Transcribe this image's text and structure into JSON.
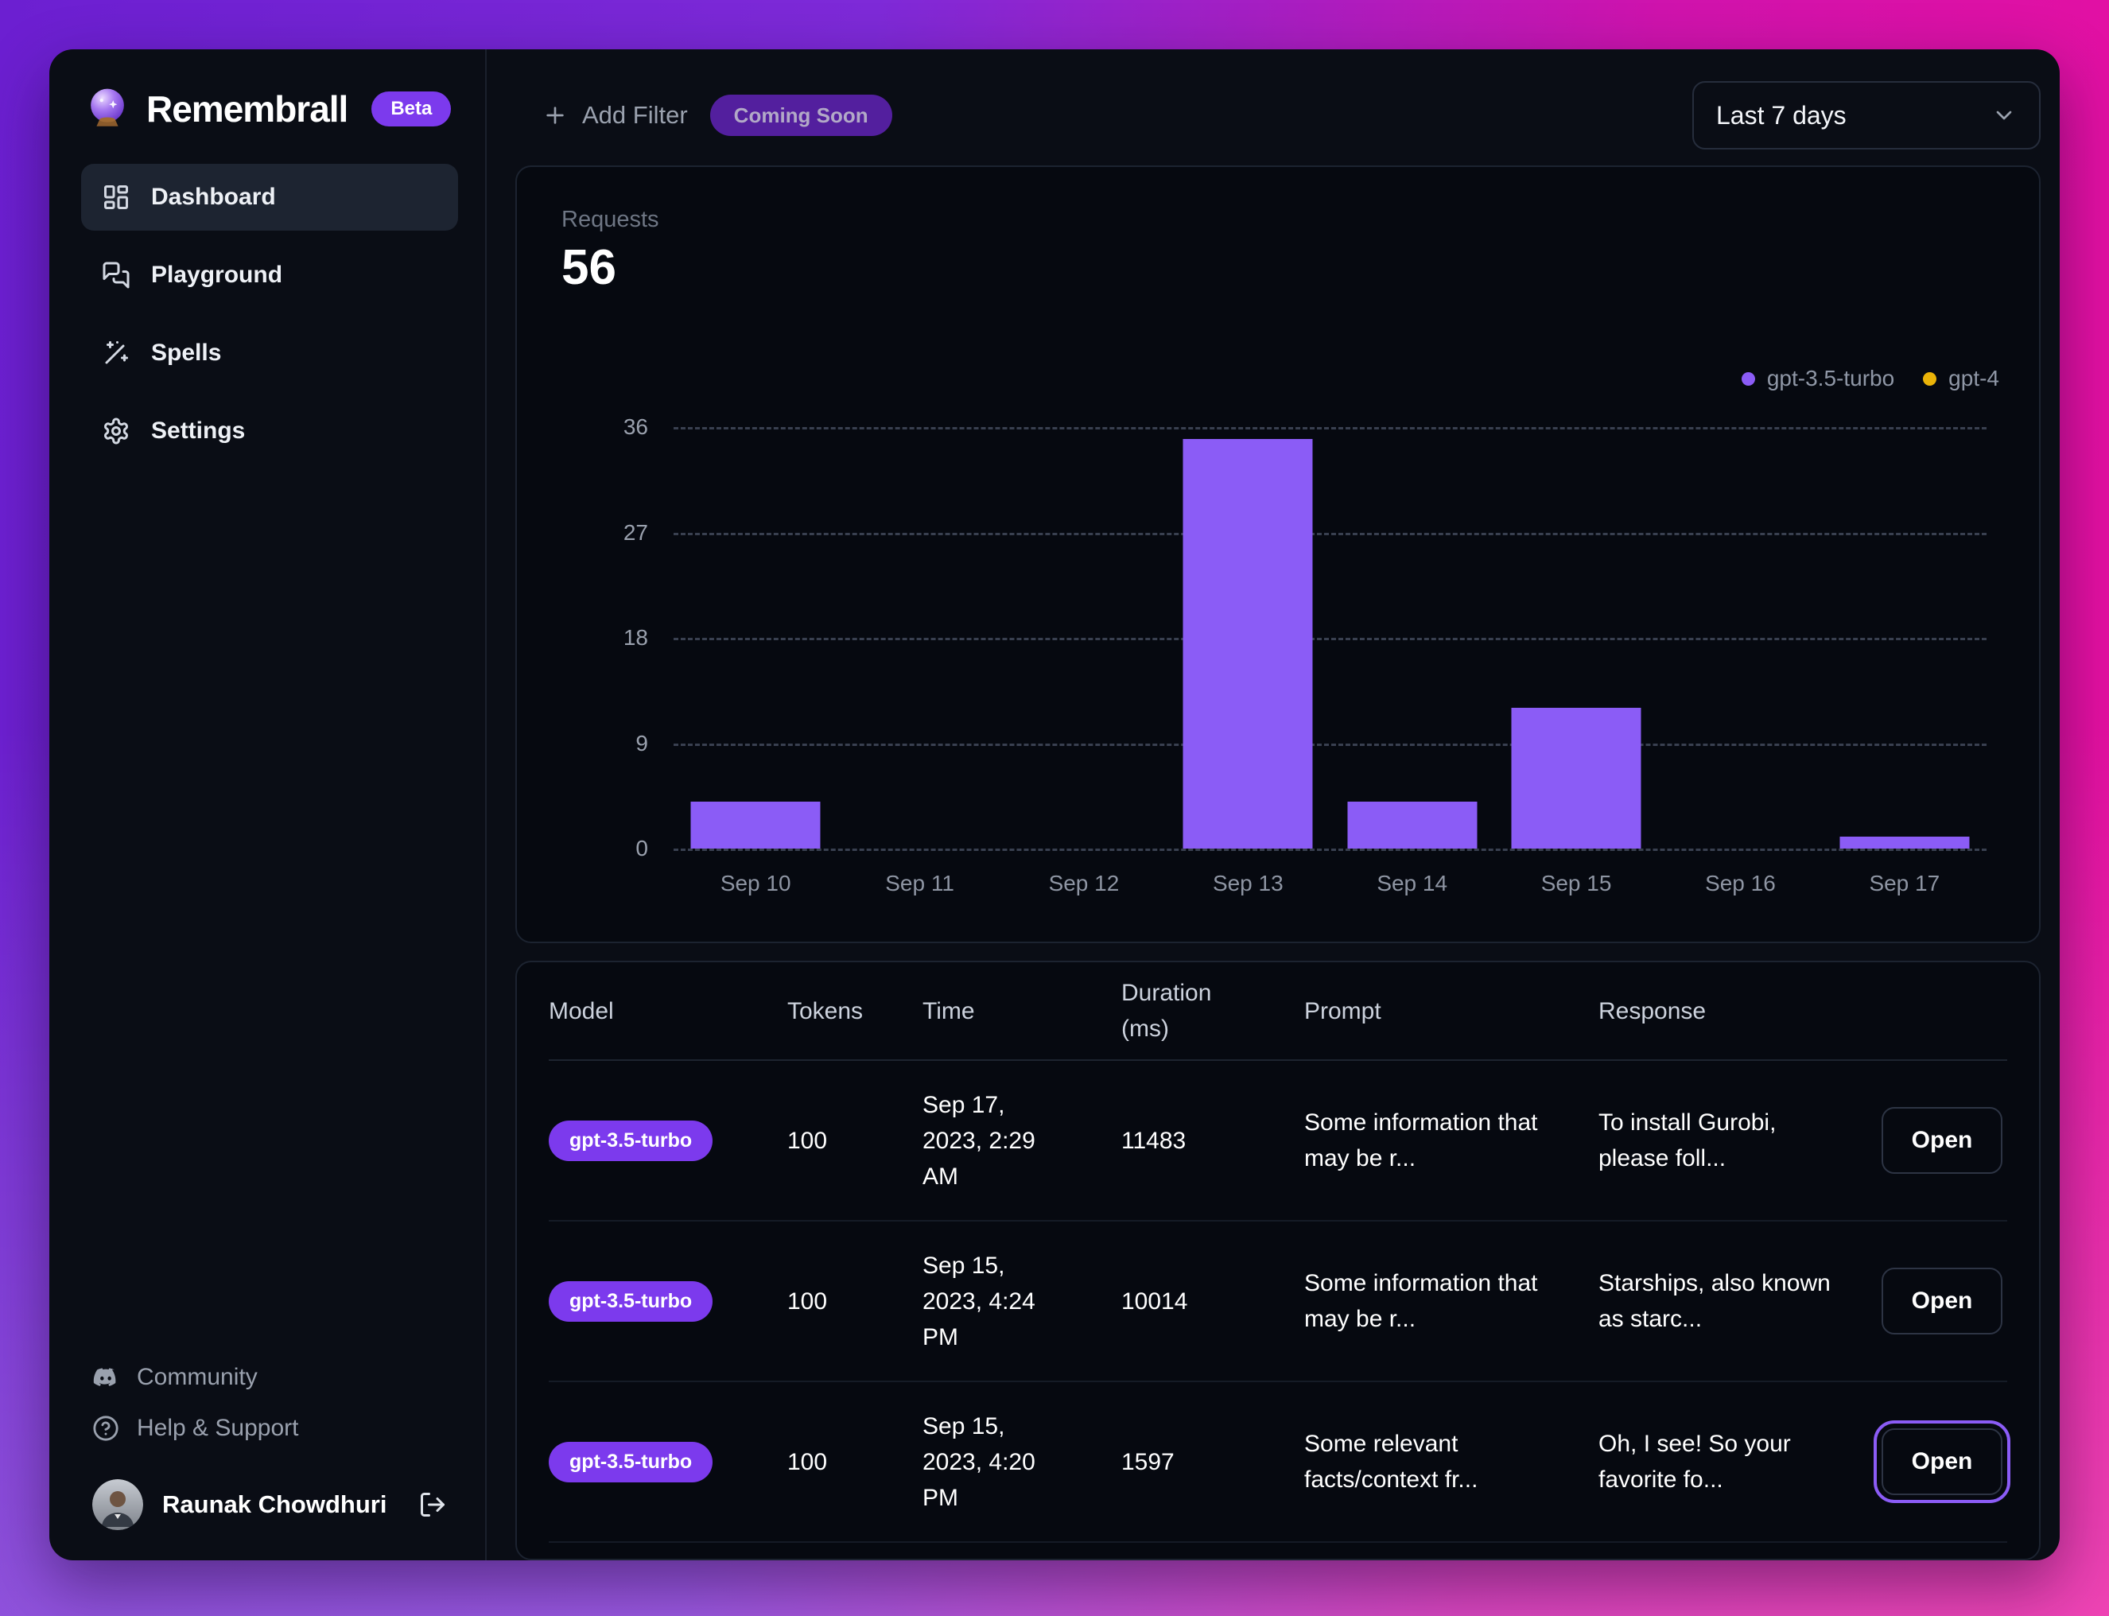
{
  "brand": {
    "name": "Remembrall",
    "badge": "Beta",
    "logo": "crystal-ball-icon"
  },
  "sidebar": {
    "items": [
      {
        "label": "Dashboard",
        "icon": "dashboard-icon",
        "active": true
      },
      {
        "label": "Playground",
        "icon": "playground-icon",
        "active": false
      },
      {
        "label": "Spells",
        "icon": "wand-icon",
        "active": false
      },
      {
        "label": "Settings",
        "icon": "gear-icon",
        "active": false
      }
    ],
    "footer": [
      {
        "label": "Community",
        "icon": "discord-icon"
      },
      {
        "label": "Help & Support",
        "icon": "help-icon"
      }
    ],
    "user": {
      "name": "Raunak Chowdhuri"
    }
  },
  "topbar": {
    "add_filter_label": "Add Filter",
    "coming_soon_label": "Coming Soon",
    "date_range": "Last 7 days"
  },
  "chart_data": {
    "type": "bar",
    "title": "Requests",
    "total_requests": 56,
    "categories": [
      "Sep 10",
      "Sep 11",
      "Sep 12",
      "Sep 13",
      "Sep 14",
      "Sep 15",
      "Sep 16",
      "Sep 17"
    ],
    "series": [
      {
        "name": "gpt-3.5-turbo",
        "color": "#8b5cf6",
        "values": [
          4,
          0,
          0,
          35,
          4,
          12,
          0,
          1
        ]
      },
      {
        "name": "gpt-4",
        "color": "#eab308",
        "values": [
          0,
          0,
          0,
          0,
          0,
          0,
          0,
          0
        ]
      }
    ],
    "yticks": [
      0,
      9,
      18,
      27,
      36
    ],
    "ylim": [
      0,
      36
    ],
    "grid": true,
    "legend_position": "top-right"
  },
  "table": {
    "columns": [
      "Model",
      "Tokens",
      "Time",
      "Duration (ms)",
      "Prompt",
      "Response"
    ],
    "open_label": "Open",
    "rows": [
      {
        "model": "gpt-3.5-turbo",
        "tokens": "100",
        "time": "Sep 17, 2023, 2:29 AM",
        "duration": "11483",
        "prompt": "Some information that may be r...",
        "response": "To install Gurobi, please foll...",
        "focused": false
      },
      {
        "model": "gpt-3.5-turbo",
        "tokens": "100",
        "time": "Sep 15, 2023, 4:24 PM",
        "duration": "10014",
        "prompt": "Some information that may be r...",
        "response": "Starships, also known as starc...",
        "focused": false
      },
      {
        "model": "gpt-3.5-turbo",
        "tokens": "100",
        "time": "Sep 15, 2023, 4:20 PM",
        "duration": "1597",
        "prompt": "Some relevant facts/context fr...",
        "response": "Oh, I see! So your favorite fo...",
        "focused": true
      }
    ]
  },
  "colors": {
    "accent_purple": "#7c3aed",
    "bar_purple": "#8b5cf6",
    "gpt4_yellow": "#eab308",
    "panel_bg": "#0a0d15",
    "card_bg": "#060910",
    "gradient_left": "#6c1fd1",
    "gradient_right": "#ea0f9f"
  }
}
